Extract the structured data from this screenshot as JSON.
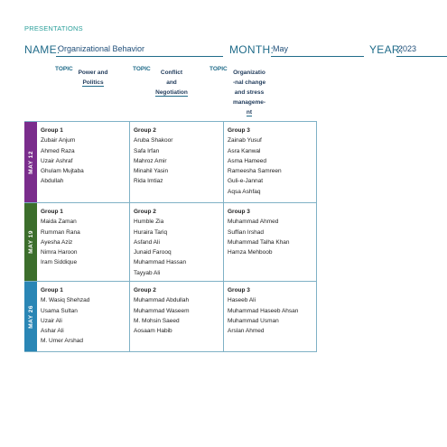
{
  "header": {
    "kicker": "PRESENTATIONS",
    "name_label": "NAME:",
    "name_value": "Organizational Behavior",
    "month_label": "MONTH:",
    "month_value": "May",
    "year_label": "YEAR:",
    "year_value": "2023"
  },
  "topics": [
    {
      "label": "TOPIC",
      "lines": [
        "Power and",
        "Politics"
      ]
    },
    {
      "label": "TOPIC",
      "lines": [
        "Conflict",
        "and",
        "Negotiation"
      ]
    },
    {
      "label": "TOPIC",
      "lines": [
        "Organizatio",
        "-nal change",
        "and stress",
        "manageme-",
        "nt"
      ]
    }
  ],
  "schedule": [
    {
      "date": "MAY 12",
      "color": "#7a2d8c",
      "groups": [
        {
          "title": "Group 1",
          "members": [
            "Zubair Anjum",
            "Ahmed Raza",
            "Uzair Ashraf",
            "Ghulam Mujtaba",
            "Abdullah"
          ]
        },
        {
          "title": "Group 2",
          "members": [
            "Aruba Shakoor",
            "Safa Irfan",
            "Mahroz Amir",
            "Minahil Yasin",
            "Rida Imtiaz"
          ]
        },
        {
          "title": "Group 3",
          "members": [
            "Zainab Yusuf",
            "Asra Kanwal",
            "Asma Hameed",
            "Rameesha Samreen",
            "Guli-e-Jannat",
            "Aqsa Ashfaq"
          ]
        }
      ]
    },
    {
      "date": "MAY 19",
      "color": "#3c6e2c",
      "groups": [
        {
          "title": "Group 1",
          "members": [
            "Maida Zaman",
            "Rumman Rana",
            "Ayesha Aziz",
            "Nimra Haroon",
            "Iram Siddique"
          ]
        },
        {
          "title": "Group 2",
          "members": [
            "Humble Zia",
            "Huraira Tariq",
            "Asfand Ali",
            "Junaid Farooq",
            "Muhammad Hassan",
            "Tayyab Ali"
          ]
        },
        {
          "title": "Group 3",
          "members": [
            "Muhammad Ahmed",
            "Suffian Irshad",
            "Muhammad Talha Khan",
            "Hamza Mehboob"
          ]
        }
      ]
    },
    {
      "date": "MAY 26",
      "color": "#2a86b5",
      "groups": [
        {
          "title": "Group 1",
          "members": [
            "M. Wasiq Shehzad",
            "Usama Sultan",
            "Uzair Ali",
            "Ashar Ali",
            "M. Umer Arshad"
          ]
        },
        {
          "title": "Group 2",
          "members": [
            "Muhammad Abdullah",
            "Muhammad Waseem",
            "M. Mohsin Saeed",
            "Aosaam Habib"
          ]
        },
        {
          "title": "Group 3",
          "members": [
            "Haseeb Ali",
            "Muhammad Haseeb Ahsan",
            "Muhammad Usman",
            "Arslan Ahmed"
          ]
        }
      ]
    }
  ]
}
